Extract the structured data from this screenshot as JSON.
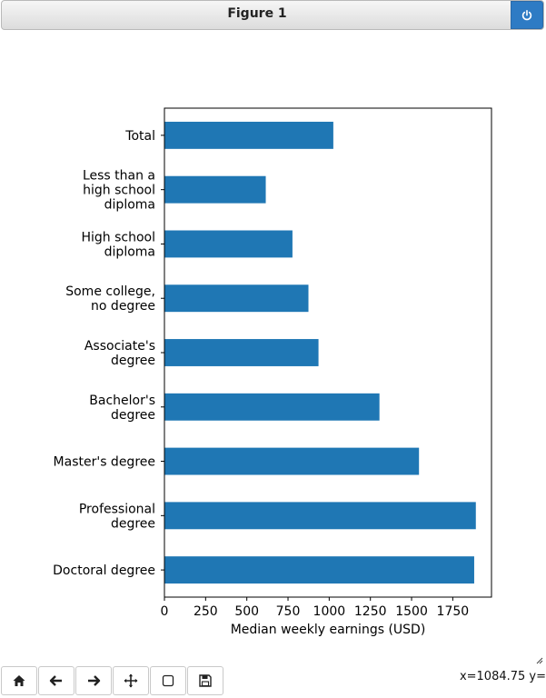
{
  "window": {
    "title": "Figure 1"
  },
  "toolbar": {
    "buttons": [
      {
        "name": "home-button",
        "icon": "home-icon"
      },
      {
        "name": "back-button",
        "icon": "arrow-left-icon"
      },
      {
        "name": "forward-button",
        "icon": "arrow-right-icon"
      },
      {
        "name": "pan-button",
        "icon": "move-icon"
      },
      {
        "name": "zoom-button",
        "icon": "zoom-rect-icon"
      },
      {
        "name": "save-button",
        "icon": "save-icon"
      }
    ]
  },
  "status": {
    "coords": "x=1084.75 y="
  },
  "chart_data": {
    "type": "bar",
    "orientation": "horizontal",
    "categories": [
      [
        "Total"
      ],
      [
        "Less than a",
        "high school",
        "diploma"
      ],
      [
        "High school",
        "diploma"
      ],
      [
        "Some college,",
        "no degree"
      ],
      [
        "Associate's",
        "degree"
      ],
      [
        "Bachelor's",
        "degree"
      ],
      [
        "Master's degree"
      ],
      [
        "Professional",
        "degree"
      ],
      [
        "Doctoral degree"
      ]
    ],
    "values": [
      1025,
      615,
      777,
      874,
      935,
      1305,
      1545,
      1890,
      1880
    ],
    "xlabel": "Median weekly earnings (USD)",
    "ylabel": "",
    "xlim": [
      0,
      1985
    ],
    "xticks": [
      0,
      250,
      500,
      750,
      1000,
      1250,
      1500,
      1750
    ],
    "color": "#1f77b4",
    "grid": false
  }
}
